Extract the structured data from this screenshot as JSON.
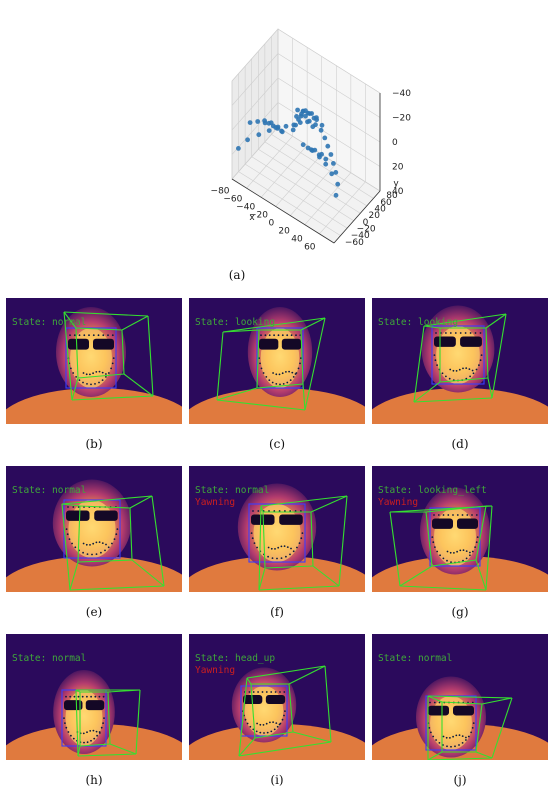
{
  "chart_data": {
    "type": "scatter3d",
    "xlabel": "x",
    "ylabel": "y",
    "zlabel": "",
    "x_ticks": [
      "−80",
      "−60",
      "−40",
      "−20",
      "0",
      "20",
      "40",
      "60"
    ],
    "y_ticks": [
      "−60",
      "−40",
      "−20",
      "0",
      "20",
      "40",
      "60",
      "80"
    ],
    "z_ticks": [
      "−40",
      "−20",
      "0",
      "20",
      "40"
    ],
    "xlim": [
      -80,
      70
    ],
    "ylim": [
      -70,
      85
    ],
    "zlim": [
      -45,
      45
    ],
    "point_color": "#2f76b3",
    "points": [
      [
        -75,
        -60,
        18
      ],
      [
        -68,
        -45,
        12
      ],
      [
        -58,
        -30,
        8
      ],
      [
        -48,
        -18,
        4
      ],
      [
        -40,
        -8,
        2
      ],
      [
        -32,
        2,
        0
      ],
      [
        -24,
        10,
        -2
      ],
      [
        -18,
        18,
        -4
      ],
      [
        -10,
        24,
        -6
      ],
      [
        0,
        28,
        -6
      ],
      [
        10,
        24,
        -6
      ],
      [
        18,
        18,
        -4
      ],
      [
        26,
        10,
        -2
      ],
      [
        34,
        2,
        0
      ],
      [
        42,
        -8,
        2
      ],
      [
        50,
        -18,
        4
      ],
      [
        58,
        -30,
        8
      ],
      [
        62,
        -45,
        12
      ],
      [
        -60,
        -55,
        -10
      ],
      [
        -50,
        -52,
        -14
      ],
      [
        -40,
        -50,
        -16
      ],
      [
        -28,
        -50,
        -18
      ],
      [
        -16,
        -50,
        -18
      ],
      [
        16,
        -50,
        -18
      ],
      [
        28,
        -50,
        -18
      ],
      [
        40,
        -50,
        -16
      ],
      [
        50,
        -52,
        -14
      ],
      [
        60,
        -55,
        -10
      ],
      [
        -4,
        -38,
        -20
      ],
      [
        -4,
        -30,
        -22
      ],
      [
        -4,
        -20,
        -24
      ],
      [
        -4,
        -10,
        -26
      ],
      [
        -14,
        -4,
        -18
      ],
      [
        -8,
        -2,
        -20
      ],
      [
        -2,
        -1,
        -22
      ],
      [
        4,
        -2,
        -20
      ],
      [
        10,
        -4,
        -18
      ],
      [
        -46,
        -38,
        -12
      ],
      [
        -38,
        -42,
        -14
      ],
      [
        -28,
        -42,
        -14
      ],
      [
        -20,
        -38,
        -12
      ],
      [
        -28,
        -34,
        -12
      ],
      [
        -38,
        -34,
        -12
      ],
      [
        18,
        -38,
        -12
      ],
      [
        26,
        -42,
        -14
      ],
      [
        36,
        -42,
        -14
      ],
      [
        44,
        -38,
        -12
      ],
      [
        36,
        -34,
        -12
      ],
      [
        26,
        -34,
        -12
      ],
      [
        -22,
        18,
        -14
      ],
      [
        -12,
        14,
        -18
      ],
      [
        -4,
        12,
        -20
      ],
      [
        4,
        14,
        -18
      ],
      [
        14,
        18,
        -14
      ],
      [
        4,
        22,
        -16
      ],
      [
        -4,
        24,
        -16
      ],
      [
        -12,
        22,
        -16
      ],
      [
        -14,
        18,
        -16
      ],
      [
        -4,
        17,
        -18
      ],
      [
        6,
        18,
        -16
      ]
    ]
  },
  "captions": [
    "(a)",
    "(b)",
    "(c)",
    "(d)",
    "(e)",
    "(f)",
    "(g)",
    "(h)",
    "(i)",
    "(j)"
  ],
  "panels": [
    {
      "id": "b",
      "state": "State: normal",
      "yawn": ""
    },
    {
      "id": "c",
      "state": "State: looking",
      "yawn": ""
    },
    {
      "id": "d",
      "state": "State: looking",
      "yawn": ""
    },
    {
      "id": "e",
      "state": "State: normal",
      "yawn": ""
    },
    {
      "id": "f",
      "state": "State: normal",
      "yawn": "Yawning"
    },
    {
      "id": "g",
      "state": "State: looking_left",
      "yawn": "Yawning"
    },
    {
      "id": "h",
      "state": "State: normal",
      "yawn": ""
    },
    {
      "id": "i",
      "state": "State: head_up",
      "yawn": "Yawning"
    },
    {
      "id": "j",
      "state": "State: normal",
      "yawn": ""
    }
  ],
  "colors": {
    "thermal_bg": "#2b0a5c",
    "box": "#3a3cff",
    "cube": "#35e030",
    "state_text": "#3fa83a",
    "yawn_text": "#cc1f1f",
    "landmark": "#0a1a40"
  }
}
